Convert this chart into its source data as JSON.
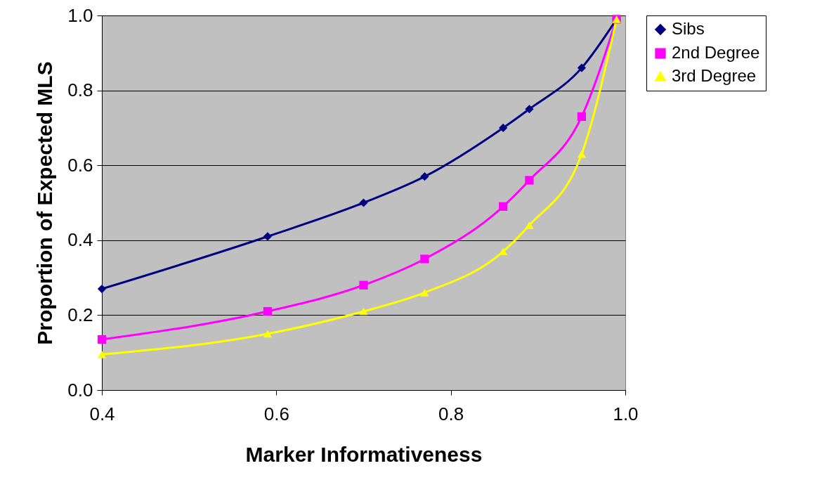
{
  "chart_data": {
    "type": "line",
    "xlabel": "Marker Informativeness",
    "ylabel": "Proportion of Expected MLS",
    "x": [
      0.4,
      0.59,
      0.7,
      0.77,
      0.86,
      0.89,
      0.95,
      0.99
    ],
    "series": [
      {
        "name": "Sibs",
        "color": "#000080",
        "marker": "diamond",
        "values": [
          0.27,
          0.41,
          0.5,
          0.57,
          0.7,
          0.75,
          0.86,
          0.99
        ]
      },
      {
        "name": "2nd Degree",
        "color": "#ff00ff",
        "marker": "square",
        "values": [
          0.135,
          0.21,
          0.28,
          0.35,
          0.49,
          0.56,
          0.73,
          0.99
        ]
      },
      {
        "name": "3rd Degree",
        "color": "#ffff00",
        "marker": "triangle",
        "values": [
          0.095,
          0.15,
          0.21,
          0.26,
          0.37,
          0.44,
          0.63,
          0.99
        ]
      }
    ],
    "xlim": [
      0.4,
      1.0
    ],
    "xticks": [
      0.4,
      0.6,
      0.8,
      {
        "value": 1.0,
        "label": "1.0"
      }
    ],
    "ylim": [
      0,
      1.0
    ],
    "yticks": [
      {
        "value": 0,
        "label": "0.0"
      },
      0.2,
      0.4,
      0.6,
      0.8,
      {
        "value": 1.0,
        "label": "1.0"
      }
    ],
    "grid": "y",
    "legend": "right"
  }
}
